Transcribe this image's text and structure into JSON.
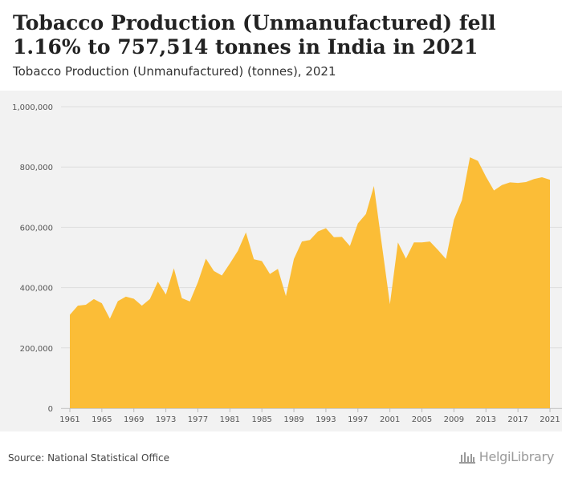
{
  "header": {
    "title": "Tobacco Production (Unmanufactured) fell 1.16% to 757,514 tonnes in India in 2021",
    "subtitle": "Tobacco Production (Unmanufactured) (tonnes), 2021"
  },
  "footer": {
    "source": "Source: National Statistical Office",
    "logo": "HelgiLibrary"
  },
  "colors": {
    "area": "#fbbd37",
    "background": "#f2f2f2",
    "grid": "#dddddd"
  },
  "chart_data": {
    "type": "area",
    "title": "",
    "xlabel": "",
    "ylabel": "",
    "ylim": [
      0,
      1000000
    ],
    "yticks": [
      0,
      200000,
      400000,
      600000,
      800000,
      1000000
    ],
    "ytick_labels": [
      "0",
      "200,000",
      "400,000",
      "600,000",
      "800,000",
      "1,000,000"
    ],
    "xticks": [
      1961,
      1965,
      1969,
      1973,
      1977,
      1981,
      1985,
      1989,
      1993,
      1997,
      2001,
      2005,
      2009,
      2013,
      2017,
      2021
    ],
    "grid": true,
    "x": [
      1961,
      1962,
      1963,
      1964,
      1965,
      1966,
      1967,
      1968,
      1969,
      1970,
      1971,
      1972,
      1973,
      1974,
      1975,
      1976,
      1977,
      1978,
      1979,
      1980,
      1981,
      1982,
      1983,
      1984,
      1985,
      1986,
      1987,
      1988,
      1989,
      1990,
      1991,
      1992,
      1993,
      1994,
      1995,
      1996,
      1997,
      1998,
      1999,
      2000,
      2001,
      2002,
      2003,
      2004,
      2005,
      2006,
      2007,
      2008,
      2009,
      2010,
      2011,
      2012,
      2013,
      2014,
      2015,
      2016,
      2017,
      2018,
      2019,
      2020,
      2021
    ],
    "series": [
      {
        "values": [
          310000,
          340000,
          343000,
          362000,
          348000,
          297000,
          355000,
          370000,
          363000,
          340000,
          362000,
          420000,
          377000,
          464000,
          365000,
          354000,
          418000,
          496000,
          455000,
          440000,
          480000,
          522000,
          583000,
          494000,
          488000,
          445000,
          462000,
          372000,
          495000,
          553000,
          558000,
          586000,
          597000,
          567000,
          568000,
          538000,
          613000,
          644000,
          737000,
          541000,
          345000,
          550000,
          496000,
          550000,
          550000,
          553000,
          525000,
          495000,
          625000,
          690000,
          832000,
          820000,
          768000,
          722000,
          740000,
          749000,
          747000,
          750000,
          760000,
          766000,
          757514
        ]
      }
    ]
  }
}
